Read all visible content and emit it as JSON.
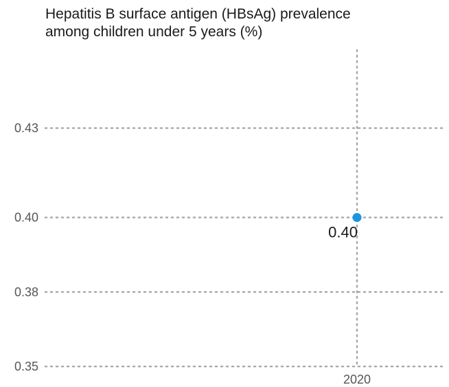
{
  "chart_data": {
    "type": "scatter",
    "title_lines": [
      "Hepatitis B surface antigen (HBsAg) prevalence",
      "among children under 5 years (%)"
    ],
    "xlabel": "",
    "ylabel": "",
    "x": [
      2020
    ],
    "x_tick_labels": [
      "2020"
    ],
    "values": [
      0.4
    ],
    "data_labels": [
      "0.40"
    ],
    "y_ticks": [
      0.43,
      0.4,
      0.38,
      0.35
    ],
    "y_tick_labels": [
      "0.43",
      "0.40",
      "0.38",
      "0.35"
    ],
    "ylim": [
      0.35,
      0.445
    ],
    "grid": true,
    "grid_style": "dotted",
    "point_color": "#1a96dc",
    "grid_color": "#aaaaaa"
  }
}
